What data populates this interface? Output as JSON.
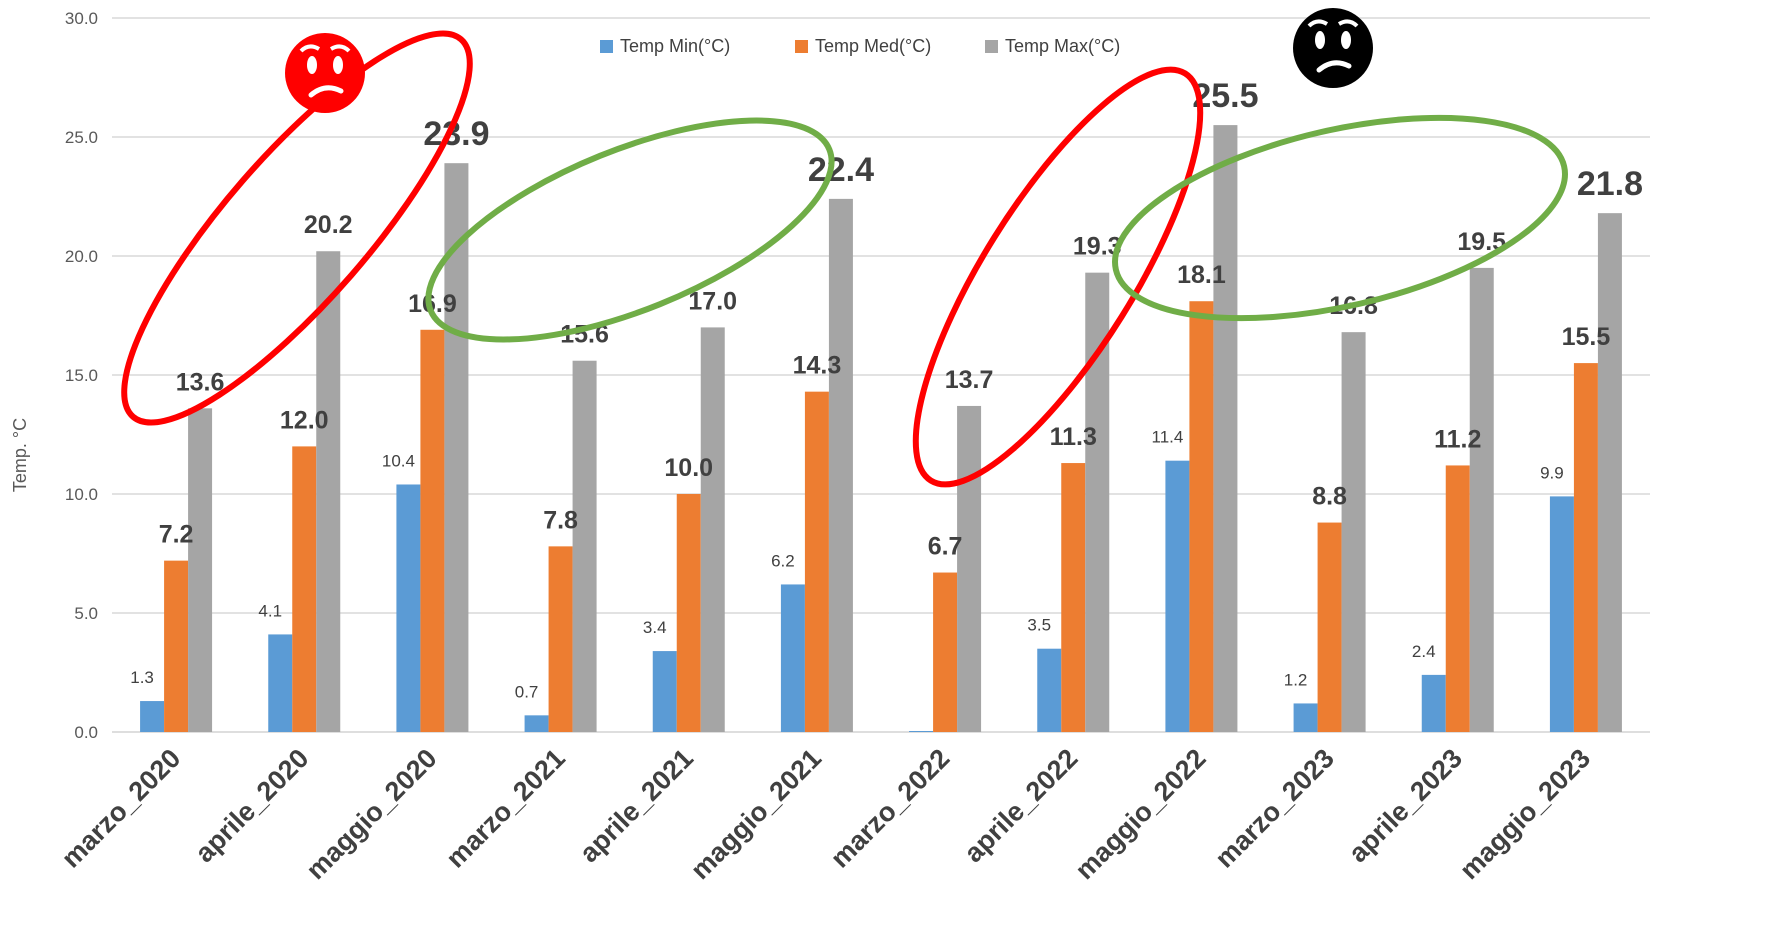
{
  "chart_data": {
    "type": "bar",
    "title": "",
    "xlabel": "",
    "ylabel": "Temp. °C",
    "ylim": [
      0,
      30
    ],
    "yticks": [
      "0.0",
      "5.0",
      "10.0",
      "15.0",
      "20.0",
      "25.0",
      "30.0"
    ],
    "grid": "horizontal",
    "legend_position": "top-center",
    "categories": [
      "marzo_2020",
      "aprile_2020",
      "maggio_2020",
      "marzo_2021",
      "aprile_2021",
      "maggio_2021",
      "marzo_2022",
      "aprile_2022",
      "maggio_2022",
      "marzo_2023",
      "aprile_2023",
      "maggio_2023"
    ],
    "series": [
      {
        "name": "Temp Min(°C)",
        "color": "#5B9BD5",
        "values": [
          1.3,
          4.1,
          10.4,
          0.7,
          3.4,
          6.2,
          0.0,
          3.5,
          11.4,
          1.2,
          2.4,
          9.9
        ],
        "labels": [
          "1.3",
          "4.1",
          "10.4",
          "0.7",
          "3.4",
          "6.2",
          "",
          "3.5",
          "11.4",
          "1.2",
          "2.4",
          "9.9"
        ]
      },
      {
        "name": "Temp Med(°C)",
        "color": "#ED7D31",
        "values": [
          7.2,
          12.0,
          16.9,
          7.8,
          10.0,
          14.3,
          6.7,
          11.3,
          18.1,
          8.8,
          11.2,
          15.5
        ],
        "labels": [
          "7.2",
          "12.0",
          "16.9",
          "7.8",
          "10.0",
          "14.3",
          "6.7",
          "11.3",
          "18.1",
          "8.8",
          "11.2",
          "15.5"
        ]
      },
      {
        "name": "Temp Max(°C)",
        "color": "#A5A5A5",
        "values": [
          13.6,
          20.2,
          23.9,
          15.6,
          17.0,
          22.4,
          13.7,
          19.3,
          25.5,
          16.8,
          19.5,
          21.8
        ],
        "labels": [
          "13.6",
          "20.2",
          "23.9",
          "15.6",
          "17.0",
          "22.4",
          "13.7",
          "19.3",
          "25.5",
          "16.8",
          "19.5",
          "21.8"
        ]
      }
    ],
    "annotations": [
      {
        "type": "ellipse",
        "color": "#FF0000",
        "around": [
          "marzo_2020",
          "aprile_2020",
          "maggio_2020"
        ],
        "series": "Temp Max(°C)"
      },
      {
        "type": "ellipse",
        "color": "#70AD47",
        "around": [
          "marzo_2021",
          "aprile_2021",
          "maggio_2021"
        ],
        "series": "Temp Max(°C)"
      },
      {
        "type": "ellipse",
        "color": "#FF0000",
        "around": [
          "marzo_2022",
          "aprile_2022",
          "maggio_2022"
        ],
        "series": "Temp Max(°C)"
      },
      {
        "type": "ellipse",
        "color": "#70AD47",
        "around": [
          "marzo_2023",
          "aprile_2023",
          "maggio_2023"
        ],
        "series": "Temp Max(°C)"
      },
      {
        "type": "emoji",
        "name": "worried-face-icon",
        "color": "#FF0000",
        "near": "aprile_2020"
      },
      {
        "type": "emoji",
        "name": "worried-face-icon",
        "color": "#000000",
        "near": "marzo_2022"
      }
    ]
  }
}
